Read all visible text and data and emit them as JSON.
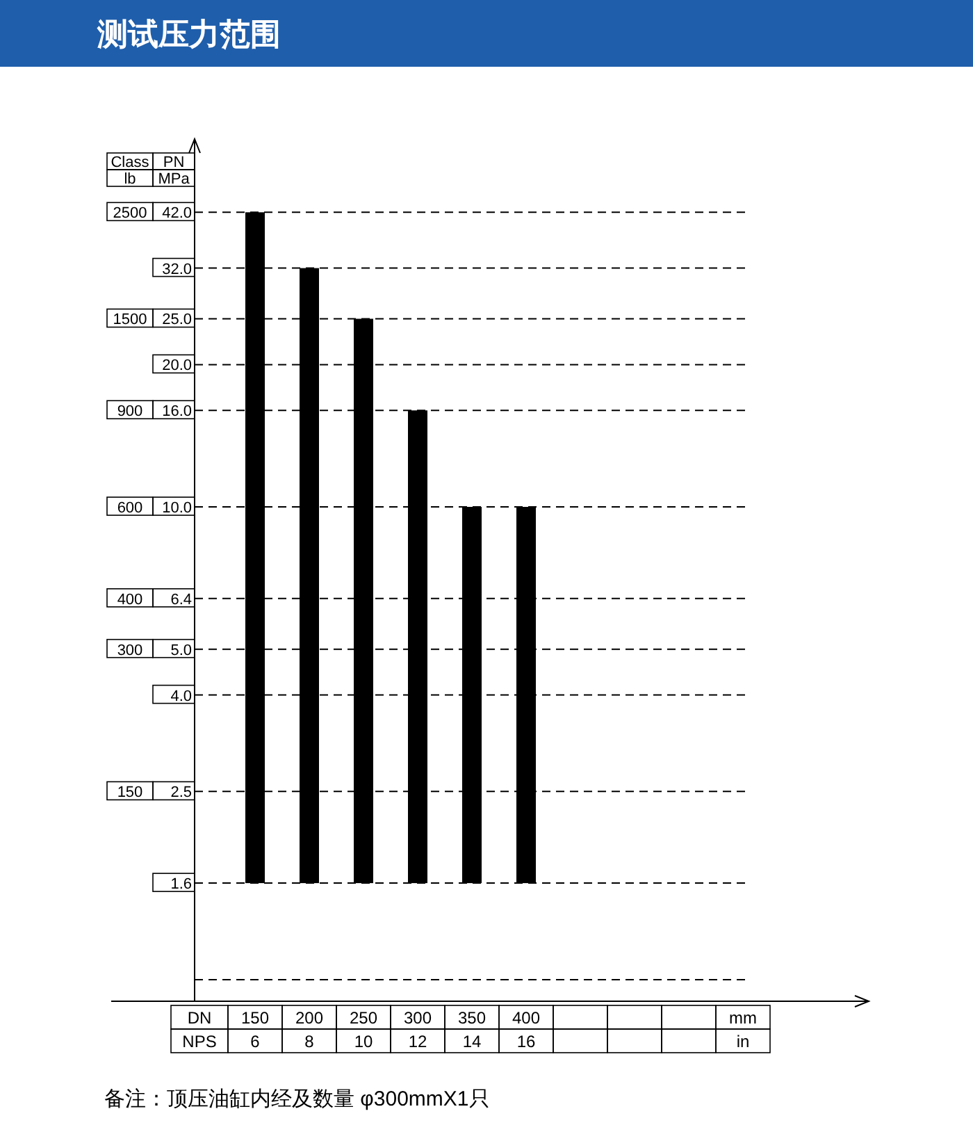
{
  "chart_data": {
    "type": "bar",
    "title": "测试压力范围",
    "xlabel": "DN",
    "ylabel": "PN\nMPa",
    "y2label": "Class\nlb",
    "categories": [
      "150",
      "200",
      "250",
      "300",
      "350",
      "400",
      null,
      null,
      null
    ],
    "values": [
      40.4,
      30.4,
      23.4,
      14.4,
      8.4,
      8.4,
      null,
      null,
      null
    ],
    "base": [
      1.6,
      1.6,
      1.6,
      1.6,
      1.6,
      1.6,
      null,
      null,
      null
    ],
    "color": "#000000",
    "ylim": [
      0.9,
      60
    ],
    "log": true,
    "yticks": [
      {
        "value": 42.0,
        "label": "42.0"
      },
      {
        "value": 32.0,
        "label": "32.0"
      },
      {
        "value": 25.0,
        "label": "25.0"
      },
      {
        "value": 20.0,
        "label": "20.0"
      },
      {
        "value": 16.0,
        "label": "16.0"
      },
      {
        "value": 10.0,
        "label": "10.0"
      },
      {
        "value": 6.4,
        "label": "6.4"
      },
      {
        "value": 5.0,
        "label": "5.0"
      },
      {
        "value": 4.0,
        "label": "4.0"
      },
      {
        "value": 2.5,
        "label": "2.5"
      },
      {
        "value": 1.6,
        "label": "1.6"
      }
    ],
    "ref_lines": [
      {
        "axis": "y",
        "value": 42.0
      },
      {
        "axis": "y",
        "value": 32.0
      },
      {
        "axis": "y",
        "value": 25.0
      },
      {
        "axis": "y",
        "value": 20.0
      },
      {
        "axis": "y",
        "value": 16.0
      },
      {
        "axis": "y",
        "value": 10.0
      },
      {
        "axis": "y",
        "value": 6.4
      },
      {
        "axis": "y",
        "value": 5.0
      },
      {
        "axis": "y",
        "value": 4.0
      },
      {
        "axis": "y",
        "value": 2.5
      },
      {
        "axis": "y",
        "value": 1.6
      },
      {
        "axis": "y",
        "value": 1.0
      }
    ],
    "line_style": "dashed",
    "annotations": [
      "NPS",
      "mm",
      "in",
      "备注：顶压油缸内经及数量 φ300mmX1只",
      "6",
      "8",
      "10",
      "12",
      "14",
      "16",
      "2500",
      "1500",
      "900",
      "600",
      "400",
      "300",
      "150"
    ]
  }
}
